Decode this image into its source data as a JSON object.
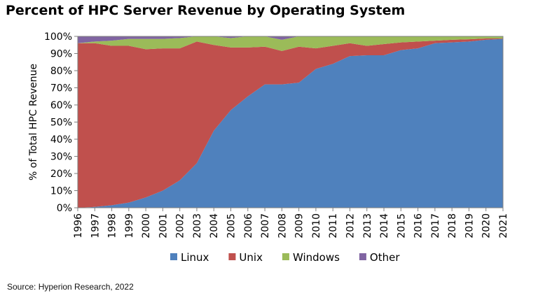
{
  "header": {
    "title": "Percent of HPC Server Revenue by Operating System"
  },
  "footer": {
    "source": "Source: Hyperion Research, 2022"
  },
  "colors": {
    "Linux": "#4f81bd",
    "Unix": "#c0504d",
    "Windows": "#9bbb59",
    "Other": "#8064a2",
    "border": "#7f7f7f"
  },
  "chart_data": {
    "type": "area",
    "stacked": true,
    "title": "Percent of HPC Server Revenue by Operating System",
    "xlabel": "",
    "ylabel": "% of Total HPC Revenue",
    "ylim": [
      0,
      100
    ],
    "yticks": [
      "0%",
      "10%",
      "20%",
      "30%",
      "40%",
      "50%",
      "60%",
      "70%",
      "80%",
      "90%",
      "100%"
    ],
    "categories": [
      "1996",
      "1997",
      "1998",
      "1999",
      "2000",
      "2001",
      "2002",
      "2003",
      "2004",
      "2005",
      "2006",
      "2007",
      "2008",
      "2009",
      "2010",
      "2011",
      "2012",
      "2013",
      "2014",
      "2015",
      "2016",
      "2017",
      "2018",
      "2019",
      "2020",
      "2021"
    ],
    "legend": "bottom",
    "grid": false,
    "series": [
      {
        "name": "Linux",
        "values": [
          0,
          0.5,
          1.5,
          3,
          6,
          10,
          16,
          26,
          45,
          57,
          65,
          72,
          72,
          73,
          81,
          84,
          88.5,
          89,
          89,
          92,
          93,
          96,
          96.5,
          97,
          98,
          98.5
        ]
      },
      {
        "name": "Unix",
        "values": [
          96,
          95.5,
          93,
          91.5,
          86.5,
          83,
          77,
          71,
          50,
          36.5,
          28.5,
          22,
          19.5,
          21,
          12,
          10.5,
          7.5,
          5.5,
          6.5,
          4.5,
          4,
          1.5,
          1.5,
          1.3,
          0.8,
          0.3
        ]
      },
      {
        "name": "Windows",
        "values": [
          0,
          1,
          3,
          4,
          6,
          5.5,
          6,
          3,
          5,
          5.5,
          6.5,
          6,
          6.5,
          6,
          7,
          5.5,
          4,
          5.5,
          4.5,
          3.5,
          3,
          2.5,
          2,
          1.7,
          1.2,
          1.2
        ]
      },
      {
        "name": "Other",
        "values": [
          4,
          3,
          2.5,
          1.5,
          1.5,
          1.5,
          1,
          0,
          0,
          1,
          0,
          0,
          2,
          0,
          0,
          0,
          0,
          0,
          0,
          0,
          0,
          0,
          0,
          0,
          0,
          0
        ]
      }
    ]
  }
}
